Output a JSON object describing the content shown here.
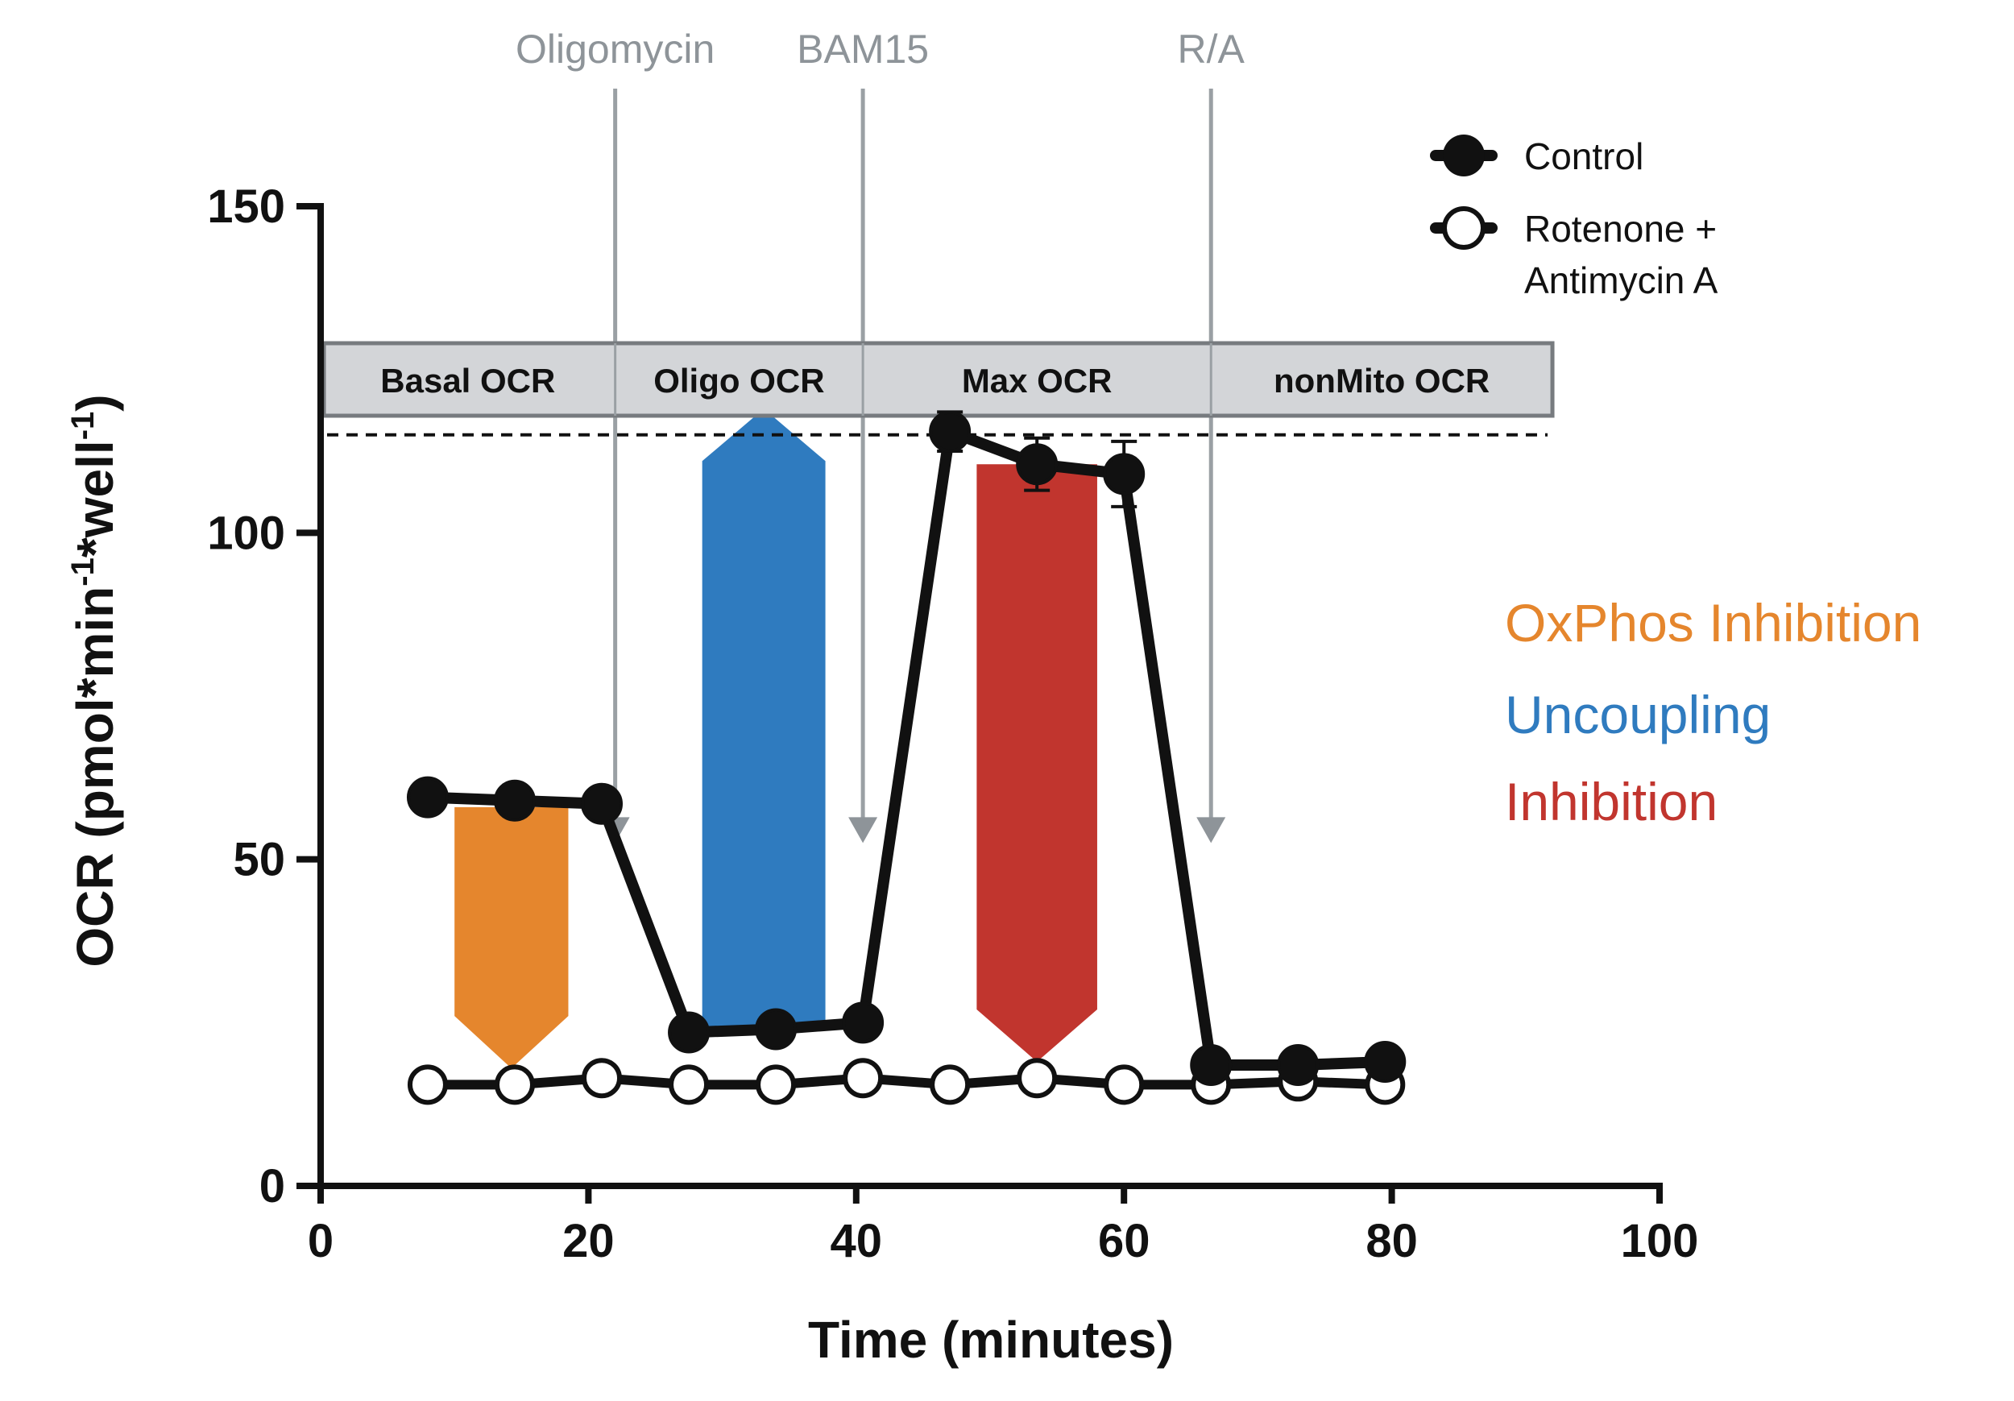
{
  "chart_data": {
    "type": "line",
    "title": "",
    "xlabel": "Time (minutes)",
    "ylabel_parts": {
      "base": "OCR (pmol*min",
      "sup1": "-1",
      "mid": "*well",
      "sup2": "-1",
      "end": ")"
    },
    "xlim": [
      0,
      100
    ],
    "ylim": [
      0,
      150
    ],
    "x_ticks": [
      "0",
      "20",
      "40",
      "60",
      "80",
      "100"
    ],
    "y_ticks": [
      "0",
      "50",
      "100",
      "150"
    ],
    "x_tick_values": [
      0,
      20,
      40,
      60,
      80,
      100
    ],
    "y_tick_values": [
      0,
      50,
      100,
      150
    ],
    "grid": false,
    "legend_position": "top-right",
    "series": [
      {
        "name": "Control",
        "marker": "filled-circle",
        "color": "#111111",
        "x": [
          8,
          14.5,
          21,
          27.5,
          34,
          40.5,
          47,
          53.5,
          60,
          66.5,
          73,
          79.5
        ],
        "y": [
          59.5,
          59,
          58.5,
          23.5,
          24,
          25,
          115.5,
          110.5,
          109,
          18.5,
          18.5,
          19
        ],
        "error": [
          0,
          0,
          0,
          0,
          0,
          0,
          3,
          4,
          5,
          0,
          0,
          0
        ]
      },
      {
        "name": "Rotenone + Antimycin A",
        "marker": "open-circle",
        "color": "#111111",
        "x": [
          8,
          14.5,
          21,
          27.5,
          34,
          40.5,
          47,
          53.5,
          60,
          66.5,
          73,
          79.5
        ],
        "y": [
          15.5,
          15.5,
          16.5,
          15.5,
          15.5,
          16.5,
          15.5,
          16.5,
          15.5,
          15.5,
          16,
          15.5
        ]
      }
    ],
    "injections": [
      {
        "label": "Oligomycin",
        "x": 22
      },
      {
        "label": "BAM15",
        "x": 40.5
      },
      {
        "label": "R/A",
        "x": 66.5
      }
    ],
    "phases": [
      "Basal OCR",
      "Oligo OCR",
      "Max OCR",
      "nonMito OCR"
    ],
    "phase_bounds": [
      0,
      22,
      40.5,
      66.5,
      92
    ],
    "reference_line_y": 115,
    "effect_arrows": [
      {
        "name": "orange",
        "color": "#e5862d",
        "x_from": 10,
        "x_to": 18.5,
        "y_start": 58,
        "y_end": 18,
        "direction": "down"
      },
      {
        "name": "blue",
        "color": "#2f7bbf",
        "x_from": 28.5,
        "x_to": 37.7,
        "y_start": 24,
        "y_end": 119,
        "direction": "up"
      },
      {
        "name": "red",
        "color": "#c1352e",
        "x_from": 49,
        "x_to": 58,
        "y_start": 110.5,
        "y_end": 19,
        "direction": "down"
      }
    ],
    "annotations": [
      {
        "text": "OxPhos Inhibition",
        "color": "#e5862d"
      },
      {
        "text": "Uncoupling",
        "color": "#2f7bbf"
      },
      {
        "text": "Inhibition",
        "color": "#c1352e"
      }
    ]
  }
}
